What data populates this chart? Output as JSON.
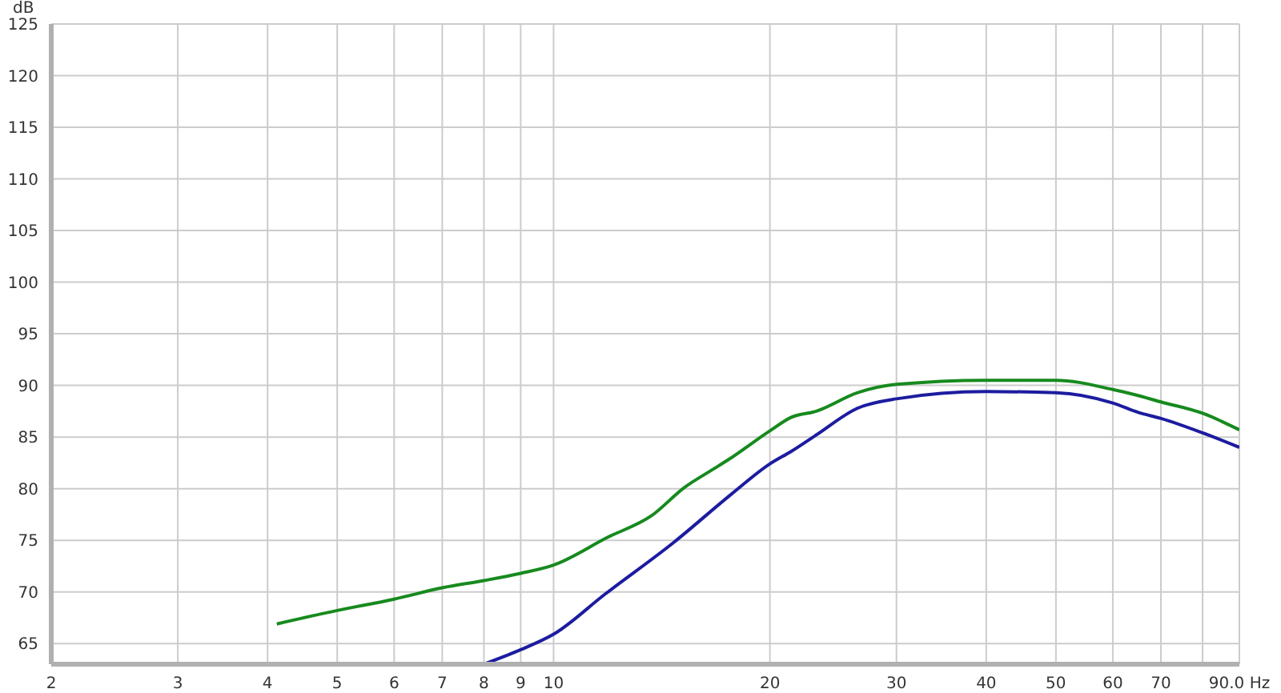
{
  "chart_data": {
    "type": "line",
    "ylabel": "dB",
    "xlim": [
      2,
      90
    ],
    "log": "x",
    "ylim": [
      63,
      125
    ],
    "yticks": [
      65,
      70,
      75,
      80,
      85,
      90,
      95,
      100,
      105,
      110,
      115,
      120,
      125
    ],
    "xticks": [
      2,
      3,
      4,
      5,
      6,
      7,
      8,
      9,
      10,
      20,
      30,
      40,
      50,
      60,
      70,
      {
        "value": 80,
        "label": null
      },
      {
        "value": 90,
        "label": "90.0 Hz"
      }
    ],
    "grid": true,
    "marker": "none",
    "line_style": "solid",
    "series": [
      {
        "color": "#178a1e",
        "x": [
          4.12,
          5,
          6,
          7,
          8,
          9,
          10,
          11.9,
          13.7,
          15.2,
          16.6,
          17.5,
          20,
          21.4,
          23.2,
          26.5,
          30,
          40,
          50,
          60,
          64.4,
          70,
          80,
          90
        ],
        "values": [
          66.9,
          68.2,
          69.3,
          70.4,
          71.1,
          71.8,
          72.6,
          75.3,
          77.4,
          80.1,
          81.8,
          82.8,
          85.6,
          86.9,
          87.5,
          89.3,
          90.1,
          90.5,
          90.5,
          89.6,
          89.1,
          88.4,
          87.3,
          85.7
        ]
      },
      {
        "color": "#1c1ca0",
        "x": [
          8,
          9,
          10,
          11.8,
          14.7,
          17.7,
          20,
          21.4,
          23.2,
          26.5,
          30,
          40,
          50,
          60,
          65,
          70,
          80,
          90
        ],
        "values": [
          63.0,
          64.4,
          65.9,
          69.8,
          74.8,
          79.5,
          82.4,
          83.6,
          85.2,
          87.8,
          88.7,
          89.4,
          89.3,
          88.3,
          87.4,
          86.8,
          85.4,
          84.0
        ]
      }
    ]
  }
}
